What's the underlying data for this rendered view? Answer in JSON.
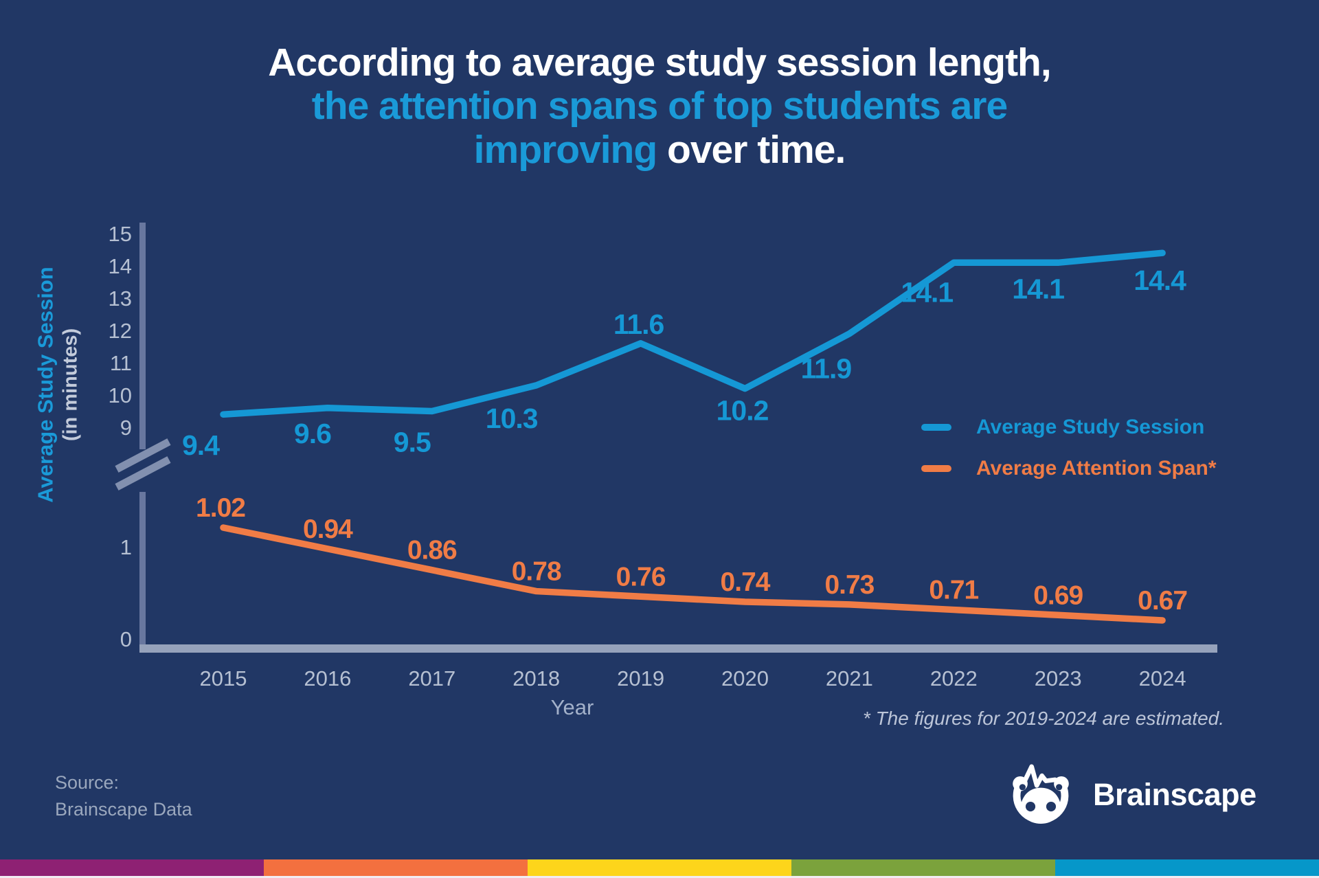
{
  "title": {
    "line1": "According to average study session length,",
    "line2": "the attention spans of top students are",
    "line3_accent": "improving",
    "line3_rest": " over time."
  },
  "chart_data": {
    "type": "line",
    "x": [
      2015,
      2016,
      2017,
      2018,
      2019,
      2020,
      2021,
      2022,
      2023,
      2024
    ],
    "xlabel": "Year",
    "ylabel": "Average Study Session",
    "ylabel_sub": "(in minutes)",
    "y_ticks_upper": [
      15,
      14,
      13,
      12,
      11,
      10,
      9
    ],
    "y_ticks_lower": [
      1,
      0
    ],
    "axis_break": true,
    "grid": false,
    "legend_position": "right-middle",
    "series": [
      {
        "name": "Average Study Session",
        "color": "#1598d5",
        "label_decimals": 1,
        "values": [
          9.4,
          9.6,
          9.5,
          10.3,
          11.6,
          10.2,
          11.9,
          14.1,
          14.1,
          14.4
        ]
      },
      {
        "name": "Average Attention Span*",
        "color": "#f07c46",
        "label_decimals": 2,
        "values": [
          1.02,
          0.94,
          0.86,
          0.78,
          0.76,
          0.74,
          0.73,
          0.71,
          0.69,
          0.67
        ]
      }
    ]
  },
  "footnote": "* The figures for 2019-2024 are estimated.",
  "source": {
    "line1": "Source:",
    "line2": "Brainscape Data"
  },
  "brand": {
    "name": "Brainscape"
  },
  "colors": {
    "background": "#213765",
    "blue": "#1598d5",
    "orange": "#f07c46",
    "axis_vertical": "#68779f",
    "axis_horizontal": "#96a2bb",
    "axis_break": "#8290af",
    "tick_text": "#b6c0d2",
    "xlabel_text": "#a3b1ca",
    "white": "#ffffff"
  },
  "footer_stripe_colors": [
    "#8e2173",
    "#f3703f",
    "#fdd51b",
    "#7ba23c",
    "#0697c9"
  ]
}
